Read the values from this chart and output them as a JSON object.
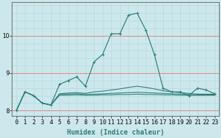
{
  "xlabel": "Humidex (Indice chaleur)",
  "x": [
    0,
    1,
    2,
    3,
    4,
    5,
    6,
    7,
    8,
    9,
    10,
    11,
    12,
    13,
    14,
    15,
    16,
    17,
    18,
    19,
    20,
    21,
    22,
    23
  ],
  "line1": [
    8.0,
    8.5,
    8.4,
    8.2,
    8.15,
    8.7,
    8.8,
    8.9,
    8.65,
    9.3,
    9.5,
    10.05,
    10.05,
    10.55,
    10.6,
    10.15,
    9.5,
    8.6,
    8.5,
    8.5,
    8.4,
    8.6,
    8.55,
    8.45
  ],
  "line2": [
    8.0,
    8.5,
    8.4,
    8.2,
    8.15,
    8.45,
    8.47,
    8.48,
    8.46,
    8.5,
    8.52,
    8.55,
    8.58,
    8.62,
    8.65,
    8.62,
    8.58,
    8.53,
    8.5,
    8.48,
    8.46,
    8.44,
    8.44,
    8.44
  ],
  "line3": [
    8.0,
    8.5,
    8.4,
    8.2,
    8.15,
    8.43,
    8.44,
    8.45,
    8.43,
    8.44,
    8.45,
    8.46,
    8.47,
    8.48,
    8.49,
    8.48,
    8.47,
    8.46,
    8.45,
    8.44,
    8.43,
    8.42,
    8.42,
    8.42
  ],
  "line4": [
    8.0,
    8.5,
    8.4,
    8.2,
    8.15,
    8.41,
    8.41,
    8.42,
    8.41,
    8.41,
    8.42,
    8.42,
    8.43,
    8.43,
    8.44,
    8.43,
    8.43,
    8.42,
    8.42,
    8.41,
    8.41,
    8.41,
    8.41,
    8.41
  ],
  "line_color": "#2d7d78",
  "bg_color": "#cde8ec",
  "grid_white_color": "#b8dde2",
  "red_line_color": "#e08080",
  "tick_label_size": 6,
  "xlabel_size": 7,
  "ylim": [
    7.85,
    10.9
  ],
  "yticks": [
    8,
    9,
    10
  ],
  "xlim": [
    -0.5,
    23.5
  ]
}
